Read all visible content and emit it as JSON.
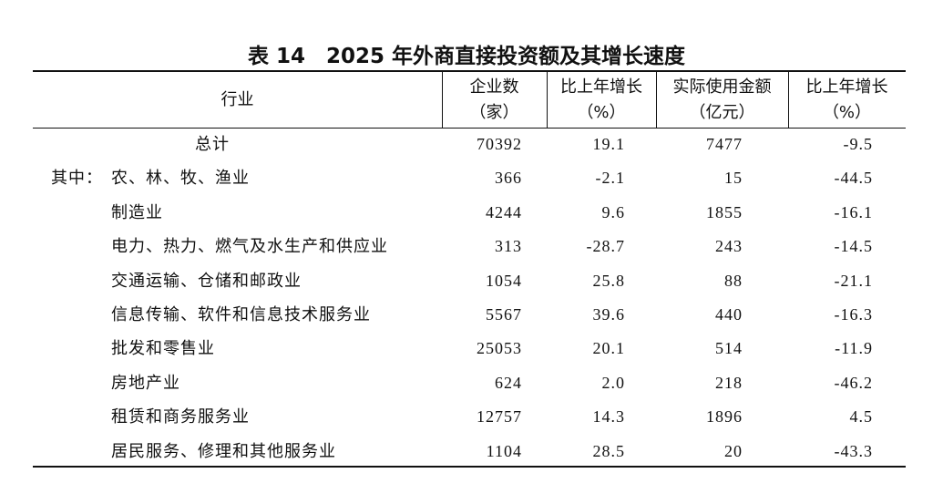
{
  "header": {
    "title": "表 14　2025 年外商直接投资额及其增长速度"
  },
  "table": {
    "columns": [
      {
        "line1": "行业"
      },
      {
        "line1": "企业数",
        "line2": "（家）"
      },
      {
        "line1": "比上年增长",
        "line2": "（%）"
      },
      {
        "line1": "实际使用金额",
        "line2": "（亿元）"
      },
      {
        "line1": "比上年增长",
        "line2": "（%）"
      }
    ],
    "subheading": "其中：",
    "rows": [
      [
        "总计",
        "70392",
        "19.1",
        "7477",
        "-9.5"
      ],
      [
        "农、林、牧、渔业",
        "366",
        "-2.1",
        "15",
        "-44.5"
      ],
      [
        "制造业",
        "4244",
        "9.6",
        "1855",
        "-16.1"
      ],
      [
        "电力、热力、燃气及水生产和供应业",
        "313",
        "-28.7",
        "243",
        "-14.5"
      ],
      [
        "交通运输、仓储和邮政业",
        "1054",
        "25.8",
        "88",
        "-21.1"
      ],
      [
        "信息传输、软件和信息技术服务业",
        "5567",
        "39.6",
        "440",
        "-16.3"
      ],
      [
        "批发和零售业",
        "25053",
        "20.1",
        "514",
        "-11.9"
      ],
      [
        "房地产业",
        "624",
        "2.0",
        "218",
        "-46.2"
      ],
      [
        "租赁和商务服务业",
        "12757",
        "14.3",
        "1896",
        "4.5"
      ],
      [
        "居民服务、修理和其他服务业",
        "1104",
        "28.5",
        "20",
        "-43.3"
      ]
    ]
  }
}
